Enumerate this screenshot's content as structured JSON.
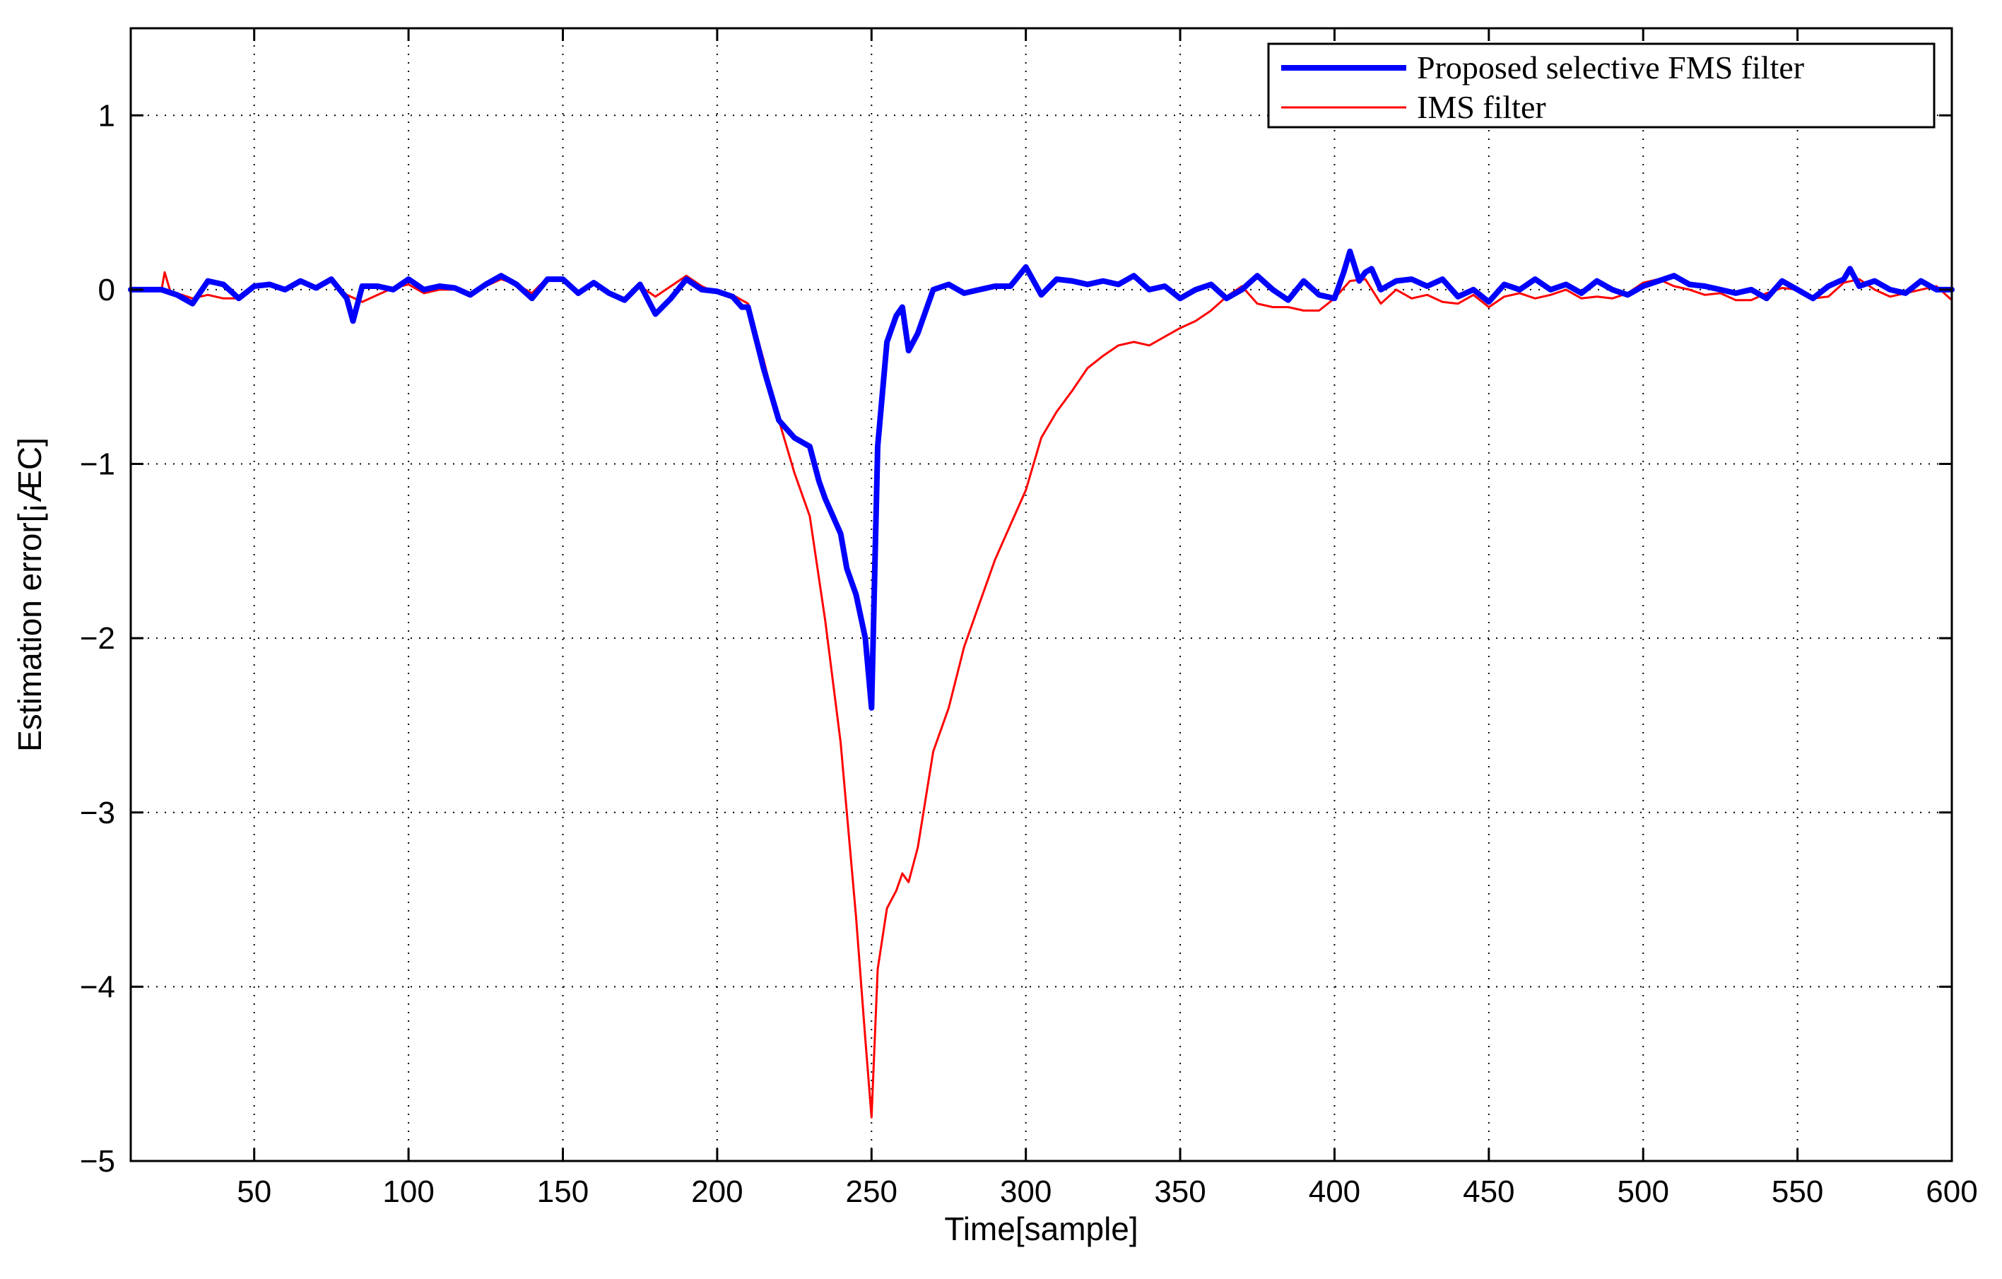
{
  "chart_data": {
    "type": "line",
    "title": "",
    "xlabel": "Time[sample]",
    "ylabel": "Estimation error[¡ÆC]",
    "xlim": [
      10,
      600
    ],
    "ylim": [
      -5,
      1.5
    ],
    "xticks": [
      50,
      100,
      150,
      200,
      250,
      300,
      350,
      400,
      450,
      500,
      550,
      600
    ],
    "yticks": [
      1,
      0,
      -1,
      -2,
      -3,
      -4,
      -5
    ],
    "xtick_labels": [
      "50",
      "100",
      "150",
      "200",
      "250",
      "300",
      "350",
      "400",
      "450",
      "500",
      "550",
      "600"
    ],
    "ytick_labels": [
      "1",
      "0",
      "−1",
      "−2",
      "−3",
      "−4",
      "−5"
    ],
    "grid": true,
    "legend_position": "top-right",
    "series": [
      {
        "name": "Proposed selective FMS filter",
        "color": "#0000ff",
        "x": [
          10,
          20,
          25,
          30,
          35,
          40,
          45,
          50,
          55,
          60,
          65,
          70,
          75,
          80,
          82,
          85,
          90,
          95,
          100,
          105,
          110,
          115,
          120,
          125,
          130,
          135,
          140,
          145,
          150,
          155,
          160,
          165,
          170,
          175,
          180,
          185,
          190,
          195,
          200,
          205,
          208,
          210,
          215,
          220,
          225,
          230,
          233,
          235,
          240,
          242,
          245,
          248,
          250,
          252,
          255,
          258,
          260,
          262,
          265,
          270,
          275,
          280,
          285,
          290,
          295,
          300,
          305,
          310,
          315,
          320,
          325,
          330,
          335,
          340,
          345,
          350,
          355,
          360,
          365,
          370,
          375,
          380,
          385,
          390,
          395,
          400,
          403,
          405,
          408,
          410,
          412,
          415,
          420,
          425,
          430,
          435,
          440,
          445,
          450,
          455,
          460,
          465,
          470,
          475,
          480,
          485,
          490,
          495,
          500,
          505,
          510,
          515,
          520,
          525,
          530,
          535,
          540,
          545,
          550,
          555,
          560,
          565,
          567,
          570,
          575,
          580,
          585,
          590,
          595,
          600
        ],
        "y": [
          0.0,
          0.0,
          -0.03,
          -0.08,
          0.05,
          0.03,
          -0.05,
          0.02,
          0.03,
          0.0,
          0.05,
          0.01,
          0.06,
          -0.05,
          -0.18,
          0.02,
          0.02,
          0.0,
          0.06,
          0.0,
          0.02,
          0.01,
          -0.03,
          0.03,
          0.08,
          0.03,
          -0.05,
          0.06,
          0.06,
          -0.02,
          0.04,
          -0.02,
          -0.06,
          0.03,
          -0.14,
          -0.05,
          0.06,
          0.0,
          -0.01,
          -0.04,
          -0.1,
          -0.1,
          -0.45,
          -0.75,
          -0.85,
          -0.9,
          -1.1,
          -1.2,
          -1.4,
          -1.6,
          -1.75,
          -2.0,
          -2.4,
          -0.9,
          -0.3,
          -0.15,
          -0.1,
          -0.35,
          -0.25,
          0.0,
          0.03,
          -0.02,
          0.0,
          0.02,
          0.02,
          0.13,
          -0.03,
          0.06,
          0.05,
          0.03,
          0.05,
          0.03,
          0.08,
          0.0,
          0.02,
          -0.05,
          0.0,
          0.03,
          -0.05,
          0.0,
          0.08,
          0.0,
          -0.06,
          0.05,
          -0.03,
          -0.05,
          0.1,
          0.22,
          0.05,
          0.1,
          0.12,
          0.0,
          0.05,
          0.06,
          0.02,
          0.06,
          -0.04,
          0.0,
          -0.07,
          0.03,
          0.0,
          0.06,
          0.0,
          0.03,
          -0.02,
          0.05,
          0.0,
          -0.03,
          0.02,
          0.05,
          0.08,
          0.03,
          0.02,
          0.0,
          -0.02,
          0.0,
          -0.05,
          0.05,
          0.0,
          -0.05,
          0.02,
          0.06,
          0.12,
          0.02,
          0.05,
          0.0,
          -0.02,
          0.05,
          0.0,
          0.0
        ]
      },
      {
        "name": "IMS filter",
        "color": "#ff0000",
        "x": [
          10,
          20,
          21,
          23,
          25,
          30,
          35,
          40,
          45,
          50,
          55,
          60,
          65,
          70,
          75,
          80,
          85,
          90,
          95,
          100,
          105,
          110,
          115,
          120,
          125,
          130,
          135,
          140,
          145,
          150,
          155,
          160,
          165,
          170,
          175,
          180,
          185,
          190,
          195,
          200,
          205,
          210,
          215,
          220,
          225,
          230,
          235,
          240,
          245,
          248,
          250,
          252,
          255,
          258,
          260,
          262,
          265,
          270,
          275,
          280,
          285,
          290,
          295,
          300,
          305,
          310,
          315,
          320,
          325,
          330,
          335,
          340,
          345,
          350,
          355,
          360,
          365,
          370,
          375,
          380,
          385,
          390,
          395,
          400,
          405,
          410,
          415,
          420,
          425,
          430,
          435,
          440,
          445,
          450,
          455,
          460,
          465,
          470,
          475,
          480,
          485,
          490,
          495,
          500,
          505,
          510,
          515,
          520,
          525,
          530,
          535,
          540,
          545,
          550,
          555,
          560,
          565,
          570,
          575,
          580,
          585,
          590,
          595,
          600
        ],
        "y": [
          0.0,
          0.0,
          0.1,
          -0.02,
          -0.02,
          -0.05,
          -0.03,
          -0.05,
          -0.05,
          0.03,
          0.02,
          0.0,
          0.04,
          0.02,
          0.05,
          -0.03,
          -0.07,
          -0.03,
          0.01,
          0.03,
          -0.02,
          0.0,
          0.0,
          -0.02,
          0.02,
          0.06,
          0.03,
          -0.02,
          0.07,
          0.05,
          -0.03,
          0.03,
          -0.01,
          -0.05,
          0.02,
          -0.04,
          0.02,
          0.08,
          0.02,
          -0.02,
          -0.03,
          -0.08,
          -0.4,
          -0.75,
          -1.05,
          -1.3,
          -1.9,
          -2.6,
          -3.6,
          -4.3,
          -4.75,
          -3.9,
          -3.55,
          -3.45,
          -3.35,
          -3.4,
          -3.2,
          -2.65,
          -2.4,
          -2.05,
          -1.8,
          -1.55,
          -1.35,
          -1.15,
          -0.85,
          -0.7,
          -0.58,
          -0.45,
          -0.38,
          -0.32,
          -0.3,
          -0.32,
          -0.27,
          -0.22,
          -0.18,
          -0.12,
          -0.04,
          0.02,
          -0.08,
          -0.1,
          -0.1,
          -0.12,
          -0.12,
          -0.05,
          0.05,
          0.06,
          -0.08,
          0.0,
          -0.05,
          -0.03,
          -0.07,
          -0.08,
          -0.03,
          -0.1,
          -0.04,
          -0.02,
          -0.05,
          -0.03,
          0.0,
          -0.05,
          -0.04,
          -0.05,
          -0.02,
          0.04,
          0.06,
          0.02,
          0.0,
          -0.03,
          -0.02,
          -0.06,
          -0.06,
          -0.02,
          0.01,
          0.0,
          -0.05,
          -0.04,
          0.04,
          0.06,
          0.0,
          -0.04,
          -0.02,
          0.0,
          0.02,
          -0.06
        ]
      }
    ]
  }
}
